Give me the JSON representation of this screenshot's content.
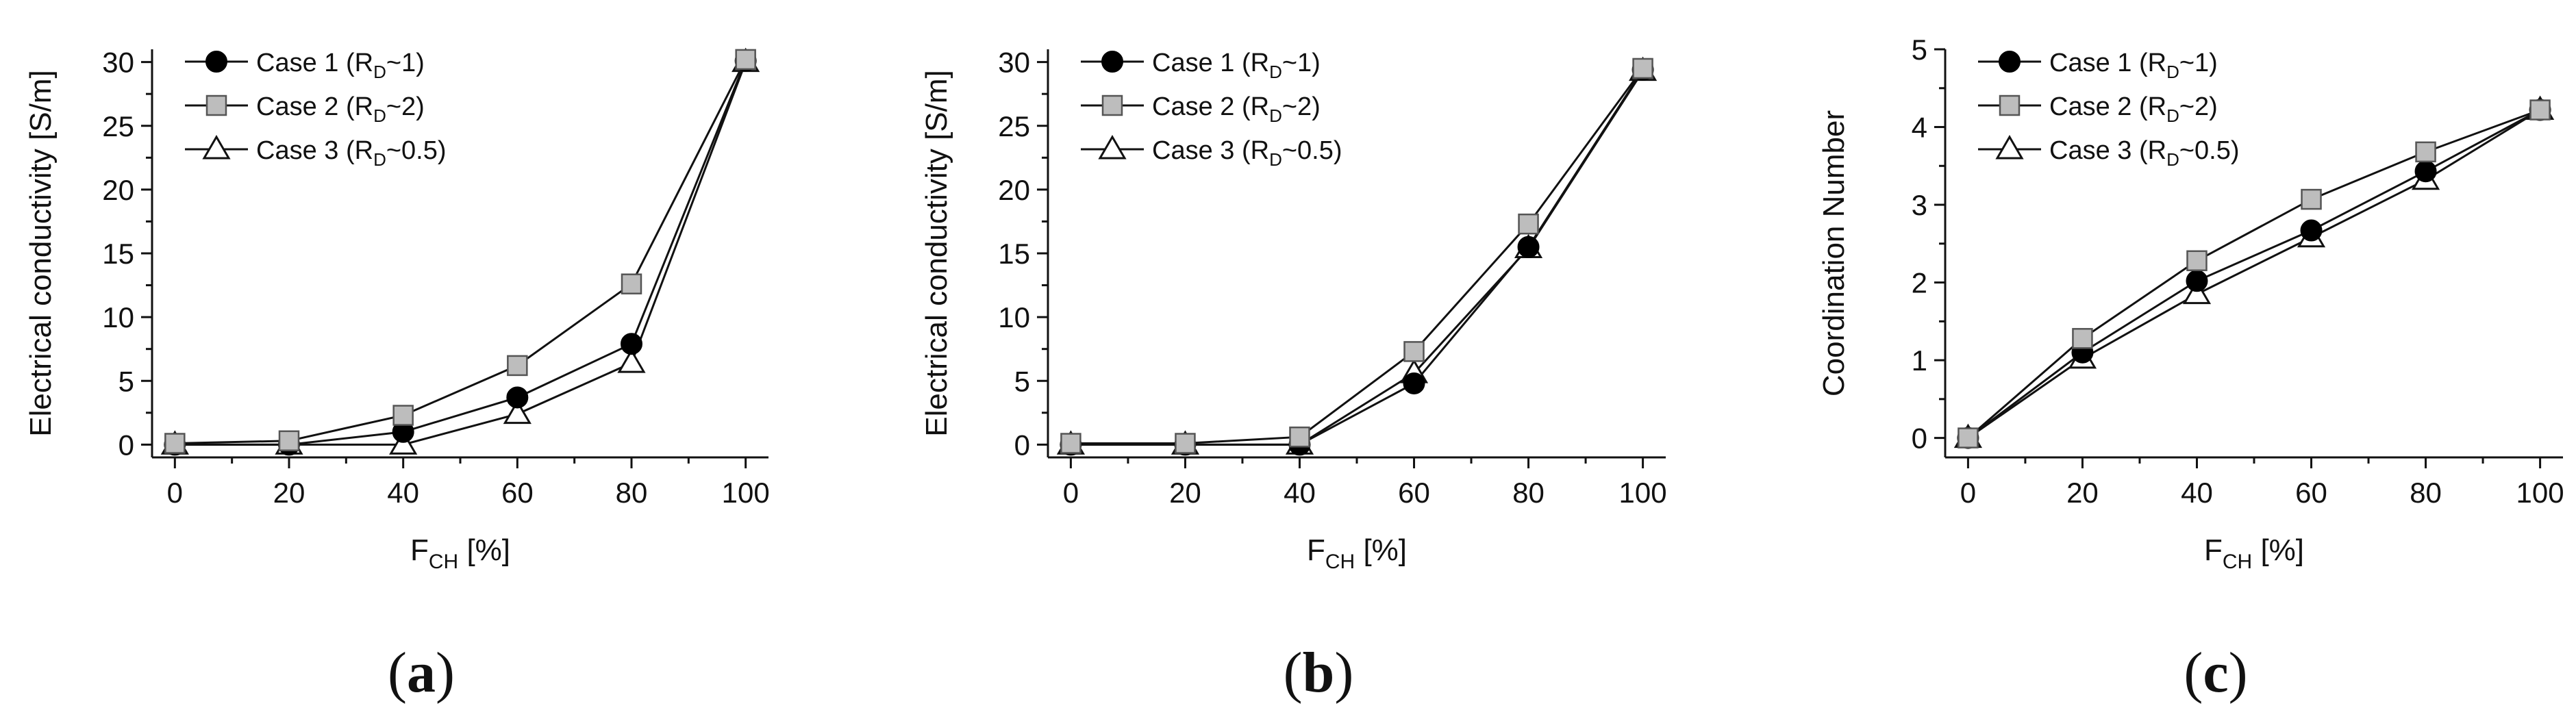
{
  "chart_data": [
    {
      "panel_label": "(a)",
      "caption": {
        "open": "(",
        "letter": "a",
        "close": ")"
      },
      "type": "line",
      "ylabel": "Electrical conductivity [S/m]",
      "xlabel_main": "F",
      "xlabel_sub": "CH",
      "xlabel_unit": " [%]",
      "x": [
        0,
        20,
        40,
        60,
        80,
        100
      ],
      "xlim": [
        -4,
        104
      ],
      "ylim": [
        -1,
        31
      ],
      "xticks": [
        0,
        20,
        40,
        60,
        80,
        100
      ],
      "yticks": [
        0,
        5,
        10,
        15,
        20,
        25,
        30
      ],
      "series": [
        {
          "name": "Case 1 (RD~1)",
          "label_pre": "Case 1 (R",
          "label_sub": "D",
          "label_post": "~1)",
          "marker": "circle",
          "values": [
            0,
            0,
            1.0,
            3.7,
            7.9,
            30.1
          ]
        },
        {
          "name": "Case 2 (RD~2)",
          "label_pre": "Case 2 (R",
          "label_sub": "D",
          "label_post": "~2)",
          "marker": "square",
          "values": [
            0.1,
            0.3,
            2.3,
            6.2,
            12.6,
            30.2
          ]
        },
        {
          "name": "Case 3 (RD~0.5)",
          "label_pre": "Case 3 (R",
          "label_sub": "D",
          "label_post": "~0.5)",
          "marker": "triangle",
          "values": [
            0,
            0,
            0,
            2.4,
            6.4,
            30.0
          ]
        }
      ],
      "legend": "top-left",
      "grid": false
    },
    {
      "panel_label": "(b)",
      "caption": {
        "open": "(",
        "letter": "b",
        "close": ")"
      },
      "type": "line",
      "ylabel": "Electrical conductivity [S/m]",
      "xlabel_main": "F",
      "xlabel_sub": "CH",
      "xlabel_unit": " [%]",
      "x": [
        0,
        20,
        40,
        60,
        80,
        100
      ],
      "xlim": [
        -4,
        104
      ],
      "ylim": [
        -1,
        31
      ],
      "xticks": [
        0,
        20,
        40,
        60,
        80,
        100
      ],
      "yticks": [
        0,
        5,
        10,
        15,
        20,
        25,
        30
      ],
      "series": [
        {
          "name": "Case 1 (RD~1)",
          "label_pre": "Case 1 (R",
          "label_sub": "D",
          "label_post": "~1)",
          "marker": "circle",
          "values": [
            0,
            0,
            0,
            4.8,
            15.5,
            29.4
          ]
        },
        {
          "name": "Case 2 (RD~2)",
          "label_pre": "Case 2 (R",
          "label_sub": "D",
          "label_post": "~2)",
          "marker": "square",
          "values": [
            0.1,
            0.1,
            0.6,
            7.3,
            17.3,
            29.5
          ]
        },
        {
          "name": "Case 3 (RD~0.5)",
          "label_pre": "Case 3 (R",
          "label_sub": "D",
          "label_post": "~0.5)",
          "marker": "triangle",
          "values": [
            0,
            0,
            0,
            5.6,
            15.4,
            29.3
          ]
        }
      ],
      "legend": "top-left",
      "grid": false
    },
    {
      "panel_label": "(c)",
      "caption": {
        "open": "(",
        "letter": "c",
        "close": ")"
      },
      "type": "line",
      "ylabel": "Coordination Number",
      "xlabel_main": "F",
      "xlabel_sub": "CH",
      "xlabel_unit": " [%]",
      "x": [
        0,
        20,
        40,
        60,
        80,
        100
      ],
      "xlim": [
        -4,
        104
      ],
      "ylim": [
        -0.25,
        5
      ],
      "xticks": [
        0,
        20,
        40,
        60,
        80,
        100
      ],
      "yticks": [
        0,
        1,
        2,
        3,
        4,
        5
      ],
      "series": [
        {
          "name": "Case 1 (RD~1)",
          "label_pre": "Case 1 (R",
          "label_sub": "D",
          "label_post": "~1)",
          "marker": "circle",
          "values": [
            0,
            1.1,
            2.02,
            2.67,
            3.43,
            4.22
          ]
        },
        {
          "name": "Case 2 (RD~2)",
          "label_pre": "Case 2 (R",
          "label_sub": "D",
          "label_post": "~2)",
          "marker": "square",
          "values": [
            0,
            1.28,
            2.28,
            3.07,
            3.68,
            4.22
          ]
        },
        {
          "name": "Case 3 (RD~0.5)",
          "label_pre": "Case 3 (R",
          "label_sub": "D",
          "label_post": "~0.5)",
          "marker": "triangle",
          "values": [
            0,
            1.02,
            1.85,
            2.58,
            3.32,
            4.22
          ]
        }
      ],
      "legend": "top-left",
      "grid": false
    }
  ]
}
